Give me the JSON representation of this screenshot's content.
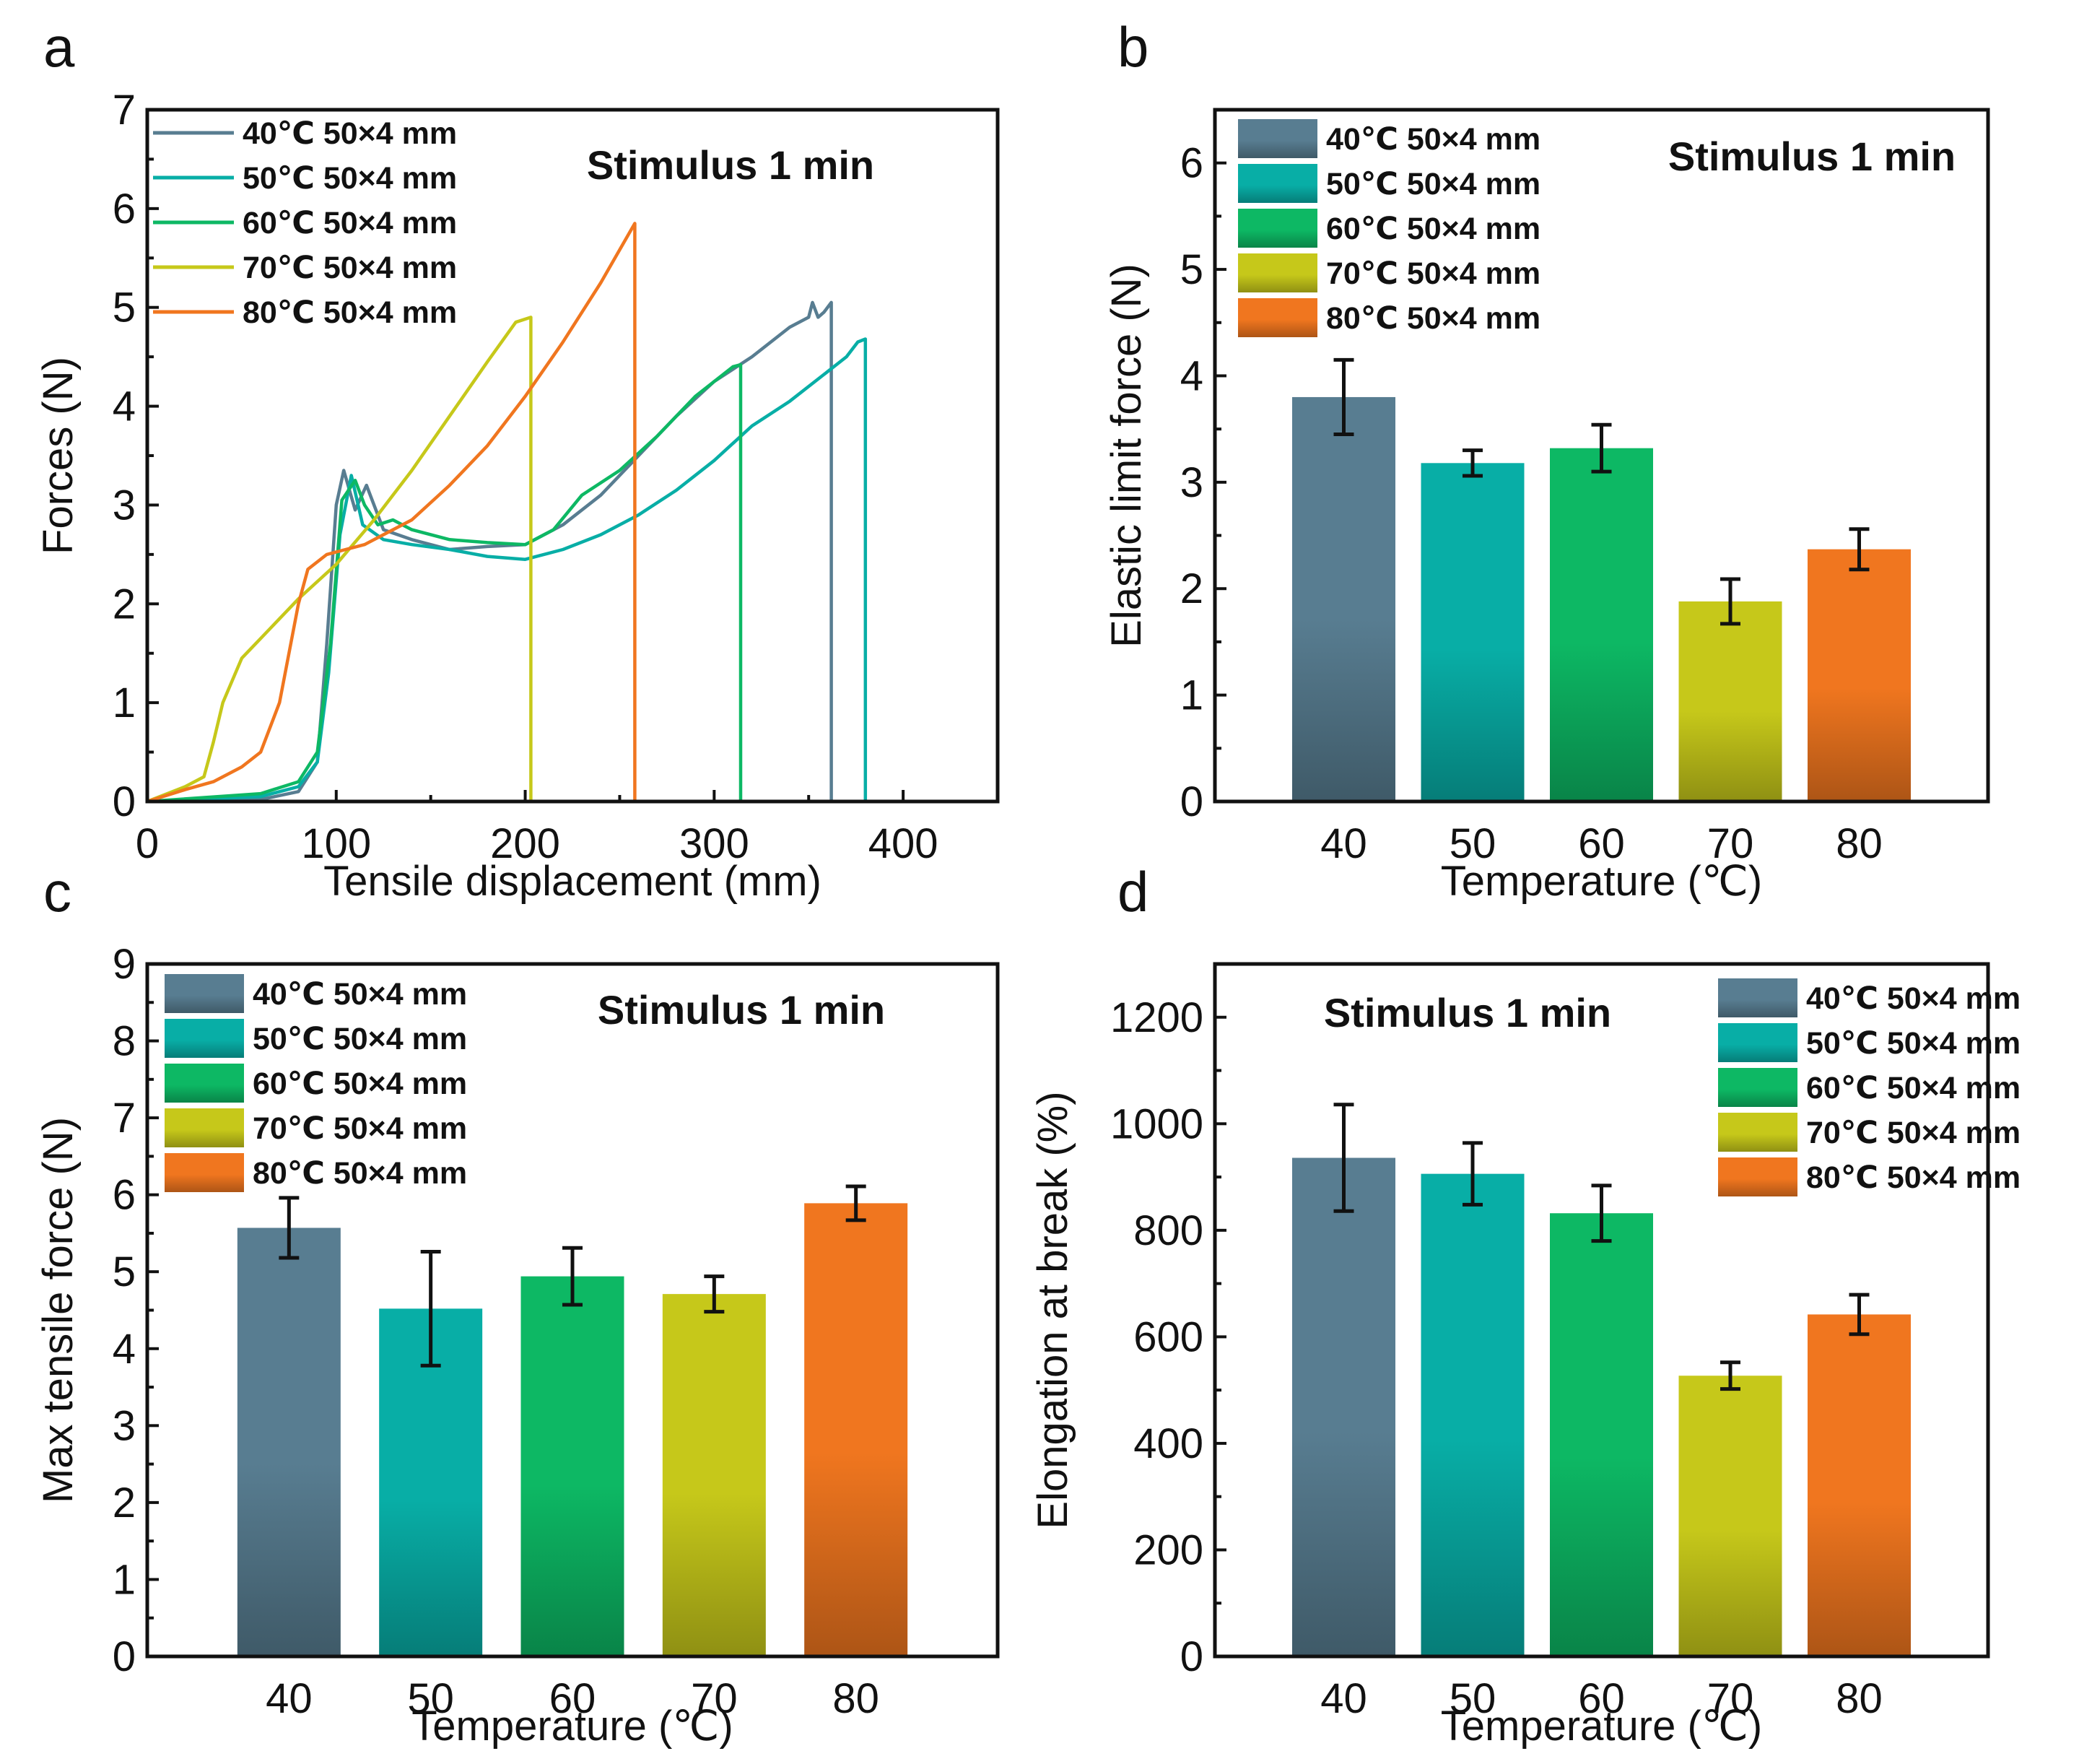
{
  "colors": {
    "c40": "#587d91",
    "c50": "#08aea6",
    "c60": "#0db864",
    "c70": "#c6c81a",
    "c80": "#f0761f"
  },
  "legend_entries": [
    {
      "temp": "40",
      "label": "40℃ 50×4 mm"
    },
    {
      "temp": "50",
      "label": "50℃ 50×4 mm"
    },
    {
      "temp": "60",
      "label": "60℃ 50×4 mm"
    },
    {
      "temp": "70",
      "label": "70℃ 50×4 mm"
    },
    {
      "temp": "80",
      "label": "80℃ 50×4 mm"
    }
  ],
  "chart_data": [
    {
      "panel": "a",
      "type": "line",
      "xlabel": "Tensile displacement (mm)",
      "ylabel": "Forces (N)",
      "annotation": "Stimulus 1 min",
      "xlim": [
        0,
        450
      ],
      "ylim": [
        0,
        7
      ],
      "xticks": [
        0,
        100,
        200,
        300,
        400
      ],
      "yticks": [
        0,
        1,
        2,
        3,
        4,
        5,
        6,
        7
      ],
      "series": [
        {
          "name": "40℃ 50×4 mm",
          "temp": "40",
          "x": [
            0,
            60,
            80,
            90,
            95,
            100,
            104,
            110,
            116,
            125,
            140,
            160,
            180,
            200,
            220,
            240,
            260,
            280,
            300,
            320,
            340,
            350,
            352,
            355,
            358,
            362,
            362
          ],
          "y": [
            0,
            0.02,
            0.1,
            0.4,
            1.6,
            3.0,
            3.35,
            2.95,
            3.2,
            2.75,
            2.65,
            2.55,
            2.58,
            2.6,
            2.8,
            3.1,
            3.5,
            3.9,
            4.25,
            4.5,
            4.8,
            4.9,
            5.05,
            4.9,
            4.95,
            5.05,
            0
          ]
        },
        {
          "name": "50℃ 50×4 mm",
          "temp": "50",
          "x": [
            0,
            60,
            80,
            90,
            96,
            102,
            108,
            114,
            125,
            140,
            160,
            180,
            200,
            220,
            240,
            260,
            280,
            300,
            320,
            340,
            360,
            370,
            376,
            380,
            380
          ],
          "y": [
            0,
            0.05,
            0.15,
            0.4,
            1.3,
            2.7,
            3.3,
            2.8,
            2.65,
            2.6,
            2.55,
            2.48,
            2.45,
            2.55,
            2.7,
            2.9,
            3.15,
            3.45,
            3.8,
            4.05,
            4.35,
            4.5,
            4.65,
            4.68,
            0
          ]
        },
        {
          "name": "60℃ 50×4 mm",
          "temp": "60",
          "x": [
            0,
            60,
            80,
            90,
            97,
            103,
            110,
            115,
            122,
            130,
            140,
            160,
            180,
            200,
            215,
            230,
            250,
            270,
            290,
            300,
            310,
            314,
            314
          ],
          "y": [
            0,
            0.08,
            0.2,
            0.5,
            1.6,
            3.05,
            3.25,
            3.0,
            2.8,
            2.85,
            2.75,
            2.65,
            2.62,
            2.6,
            2.75,
            3.1,
            3.35,
            3.7,
            4.1,
            4.25,
            4.4,
            4.42,
            0
          ]
        },
        {
          "name": "70℃ 50×4 mm",
          "temp": "70",
          "x": [
            0,
            20,
            30,
            35,
            40,
            50,
            65,
            80,
            100,
            120,
            140,
            160,
            180,
            195,
            203,
            203
          ],
          "y": [
            0,
            0.15,
            0.25,
            0.6,
            1.0,
            1.45,
            1.75,
            2.05,
            2.4,
            2.85,
            3.35,
            3.9,
            4.45,
            4.85,
            4.9,
            0
          ]
        },
        {
          "name": "80℃ 50×4 mm",
          "temp": "80",
          "x": [
            0,
            20,
            35,
            50,
            60,
            70,
            75,
            80,
            85,
            95,
            105,
            115,
            125,
            140,
            160,
            180,
            200,
            220,
            240,
            255,
            258,
            258
          ],
          "y": [
            0,
            0.12,
            0.2,
            0.35,
            0.5,
            1.0,
            1.5,
            2.0,
            2.35,
            2.5,
            2.55,
            2.6,
            2.7,
            2.85,
            3.2,
            3.6,
            4.1,
            4.65,
            5.25,
            5.75,
            5.85,
            0
          ]
        }
      ]
    },
    {
      "panel": "b",
      "type": "bar",
      "xlabel": "Temperature (℃)",
      "ylabel": "Elastic limit force (N)",
      "annotation": "Stimulus 1 min",
      "categories": [
        "40",
        "50",
        "60",
        "70",
        "80"
      ],
      "values": [
        3.8,
        3.18,
        3.32,
        1.88,
        2.37
      ],
      "errors": [
        0.35,
        0.12,
        0.22,
        0.21,
        0.19
      ],
      "ylim": [
        0,
        6.5
      ],
      "yticks": [
        0,
        1,
        2,
        3,
        4,
        5,
        6
      ]
    },
    {
      "panel": "c",
      "type": "bar",
      "xlabel": "Temperature (℃)",
      "ylabel": "Max tensile force (N)",
      "annotation": "Stimulus 1 min",
      "categories": [
        "40",
        "50",
        "60",
        "70",
        "80"
      ],
      "values": [
        5.57,
        4.52,
        4.94,
        4.71,
        5.89
      ],
      "errors": [
        0.39,
        0.74,
        0.37,
        0.23,
        0.22
      ],
      "ylim": [
        0,
        9
      ],
      "yticks": [
        0,
        1,
        2,
        3,
        4,
        5,
        6,
        7,
        8,
        9
      ]
    },
    {
      "panel": "d",
      "type": "bar",
      "xlabel": "Temperature (℃)",
      "ylabel": "Elongation at break (%)",
      "annotation": "Stimulus 1 min",
      "categories": [
        "40",
        "50",
        "60",
        "70",
        "80"
      ],
      "values": [
        936,
        906,
        832,
        527,
        642
      ],
      "errors": [
        100,
        58,
        52,
        25,
        37
      ],
      "ylim": [
        0,
        1300
      ],
      "yticks": [
        0,
        200,
        400,
        600,
        800,
        1000,
        1200
      ]
    }
  ]
}
